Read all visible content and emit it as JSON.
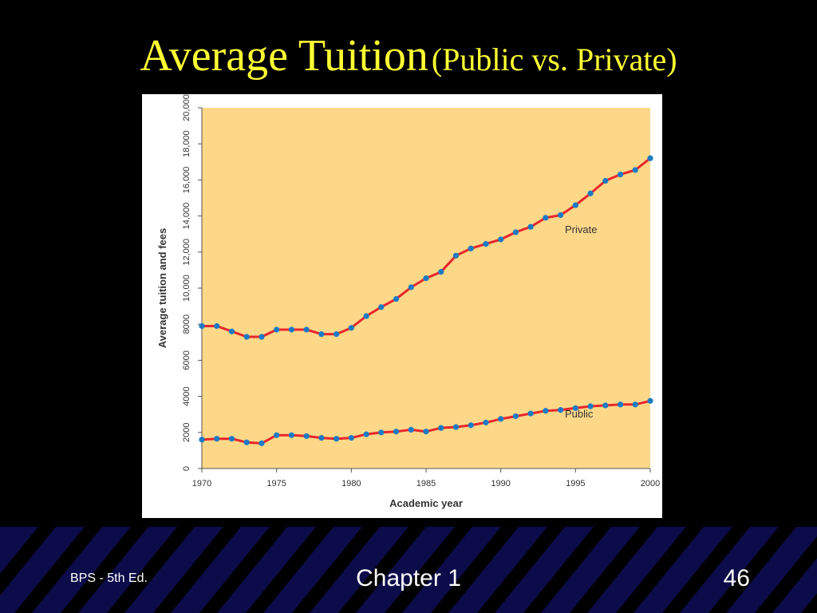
{
  "slide": {
    "title_main": "Average Tuition",
    "title_sub": "(Public vs. Private)",
    "footer_left": "BPS - 5th Ed.",
    "footer_center": "Chapter 1",
    "footer_right": "46"
  },
  "colors": {
    "background": "#000000",
    "title": "#ffff33",
    "plot_background": "#fdd889",
    "line": "#e8262b",
    "marker": "#1a7bc4",
    "footer_band": "#0c0c4a",
    "footer_stripe": "#000000"
  },
  "chart_data": {
    "type": "line",
    "title": "",
    "xlabel": "Academic year",
    "ylabel": "Average tuition and fees",
    "xlim": [
      1970,
      2000
    ],
    "ylim": [
      0,
      20000
    ],
    "x_ticks": [
      1970,
      1975,
      1980,
      1985,
      1990,
      1995,
      2000
    ],
    "y_ticks": [
      0,
      2000,
      4000,
      6000,
      8000,
      10000,
      12000,
      14000,
      16000,
      18000,
      20000
    ],
    "y_tick_labels": [
      "0",
      "2000",
      "4000",
      "6000",
      "8000",
      "10,000",
      "12,000",
      "14,000",
      "16,000",
      "18,000",
      "20,000"
    ],
    "grid": false,
    "x": [
      1970,
      1971,
      1972,
      1973,
      1974,
      1975,
      1976,
      1977,
      1978,
      1979,
      1980,
      1981,
      1982,
      1983,
      1984,
      1985,
      1986,
      1987,
      1988,
      1989,
      1990,
      1991,
      1992,
      1993,
      1994,
      1995,
      1996,
      1997,
      1998,
      1999,
      2000
    ],
    "series": [
      {
        "name": "Private",
        "values": [
          7900,
          7900,
          7600,
          7300,
          7300,
          7700,
          7700,
          7700,
          7450,
          7450,
          7800,
          8450,
          8950,
          9400,
          10050,
          10550,
          10900,
          11800,
          12200,
          12450,
          12700,
          13100,
          13400,
          13900,
          14050,
          14600,
          15250,
          15950,
          16300,
          16550,
          17200
        ]
      },
      {
        "name": "Public",
        "values": [
          1600,
          1650,
          1650,
          1450,
          1400,
          1850,
          1850,
          1800,
          1700,
          1650,
          1700,
          1900,
          2000,
          2050,
          2150,
          2050,
          2250,
          2300,
          2400,
          2550,
          2750,
          2900,
          3050,
          3200,
          3250,
          3350,
          3450,
          3500,
          3550,
          3550,
          3750
        ]
      }
    ]
  }
}
